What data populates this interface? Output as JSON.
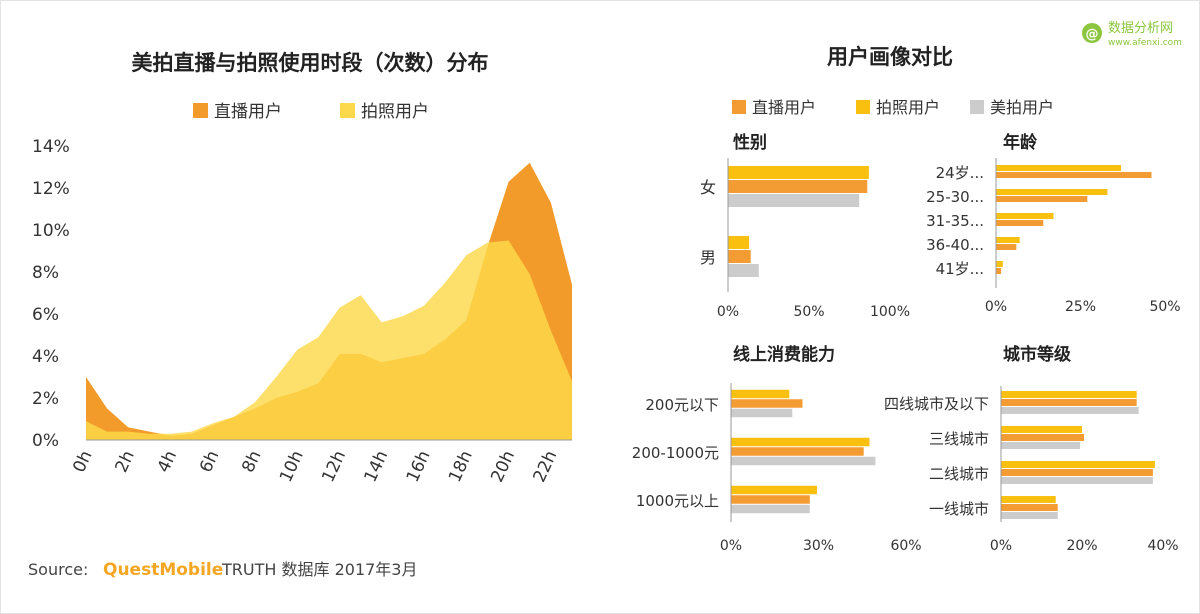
{
  "watermark": {
    "name": "数据分析网",
    "url": "www.afenxi.com"
  },
  "source": {
    "label": "Source:",
    "brand": "QuestMobile",
    "rest": "TRUTH 数据库 2017年3月"
  },
  "colors": {
    "live": "#f39c33",
    "photo": "#fac00f",
    "meipai": "#cccccc",
    "photo_area": "#fcd94a",
    "live_area": "#f29b2b",
    "brand_orange": "#f5a623"
  },
  "chart_data": [
    {
      "type": "area",
      "title": "美拍直播与拍照使用时段（次数）分布",
      "legend": [
        "直播用户",
        "拍照用户"
      ],
      "x": [
        "0h",
        "1h",
        "2h",
        "3h",
        "4h",
        "5h",
        "6h",
        "7h",
        "8h",
        "9h",
        "10h",
        "11h",
        "12h",
        "13h",
        "14h",
        "15h",
        "16h",
        "17h",
        "18h",
        "19h",
        "20h",
        "21h",
        "22h",
        "23h"
      ],
      "x_tick_labels": [
        "0h",
        "2h",
        "4h",
        "6h",
        "8h",
        "10h",
        "12h",
        "14h",
        "16h",
        "18h",
        "20h",
        "22h"
      ],
      "y_tick_labels": [
        "0%",
        "2%",
        "4%",
        "6%",
        "8%",
        "10%",
        "12%",
        "14%"
      ],
      "ylim": [
        0,
        14
      ],
      "series": [
        {
          "name": "直播用户",
          "values": [
            3.0,
            1.5,
            0.6,
            0.4,
            0.2,
            0.3,
            0.7,
            1.1,
            1.5,
            2.0,
            2.3,
            2.7,
            4.1,
            4.1,
            3.7,
            3.9,
            4.1,
            4.8,
            5.7,
            9.2,
            12.3,
            13.2,
            11.3,
            7.4
          ]
        },
        {
          "name": "拍照用户",
          "values": [
            0.9,
            0.4,
            0.4,
            0.3,
            0.3,
            0.4,
            0.8,
            1.1,
            1.8,
            3.0,
            4.3,
            4.9,
            6.3,
            6.9,
            5.6,
            5.9,
            6.4,
            7.5,
            8.8,
            9.4,
            9.5,
            7.9,
            5.2,
            2.8
          ]
        }
      ]
    },
    {
      "type": "bar",
      "title": "性别",
      "categories": [
        "女",
        "男"
      ],
      "x_tick_labels": [
        "0%",
        "50%",
        "100%"
      ],
      "xlim": [
        0,
        100
      ],
      "series": [
        {
          "name": "直播用户",
          "values": [
            86,
            14
          ]
        },
        {
          "name": "拍照用户",
          "values": [
            87,
            13
          ]
        },
        {
          "name": "美拍用户",
          "values": [
            81,
            19
          ]
        }
      ]
    },
    {
      "type": "bar",
      "title": "年龄",
      "categories": [
        "24岁...",
        "25-30...",
        "31-35...",
        "36-40...",
        "41岁..."
      ],
      "x_tick_labels": [
        "0%",
        "25%",
        "50%"
      ],
      "xlim": [
        0,
        50
      ],
      "series": [
        {
          "name": "直播用户",
          "values": [
            46,
            27,
            14,
            6,
            1.5
          ]
        },
        {
          "name": "拍照用户",
          "values": [
            37,
            33,
            17,
            7,
            2
          ]
        }
      ]
    },
    {
      "type": "bar",
      "title": "线上消费能力",
      "categories": [
        "200元以下",
        "200-1000元",
        "1000元以上"
      ],
      "x_tick_labels": [
        "0%",
        "30%",
        "60%"
      ],
      "xlim": [
        0,
        60
      ],
      "series": [
        {
          "name": "直播用户",
          "values": [
            24.5,
            45.5,
            27
          ]
        },
        {
          "name": "拍照用户",
          "values": [
            20,
            47.5,
            29.5
          ]
        },
        {
          "name": "美拍用户",
          "values": [
            21,
            49.5,
            27
          ]
        }
      ]
    },
    {
      "type": "bar",
      "title": "城市等级",
      "categories": [
        "四线城市及以下",
        "三线城市",
        "二线城市",
        "一线城市"
      ],
      "x_tick_labels": [
        "0%",
        "20%",
        "40%"
      ],
      "xlim": [
        0,
        40
      ],
      "series": [
        {
          "name": "直播用户",
          "values": [
            33.5,
            20.5,
            37.5,
            14
          ]
        },
        {
          "name": "拍照用户",
          "values": [
            33.5,
            20,
            38,
            13.5
          ]
        },
        {
          "name": "美拍用户",
          "values": [
            34,
            19.5,
            37.5,
            14
          ]
        }
      ]
    }
  ],
  "right_panel": {
    "title": "用户画像对比",
    "legend": [
      "直播用户",
      "拍照用户",
      "美拍用户"
    ]
  }
}
